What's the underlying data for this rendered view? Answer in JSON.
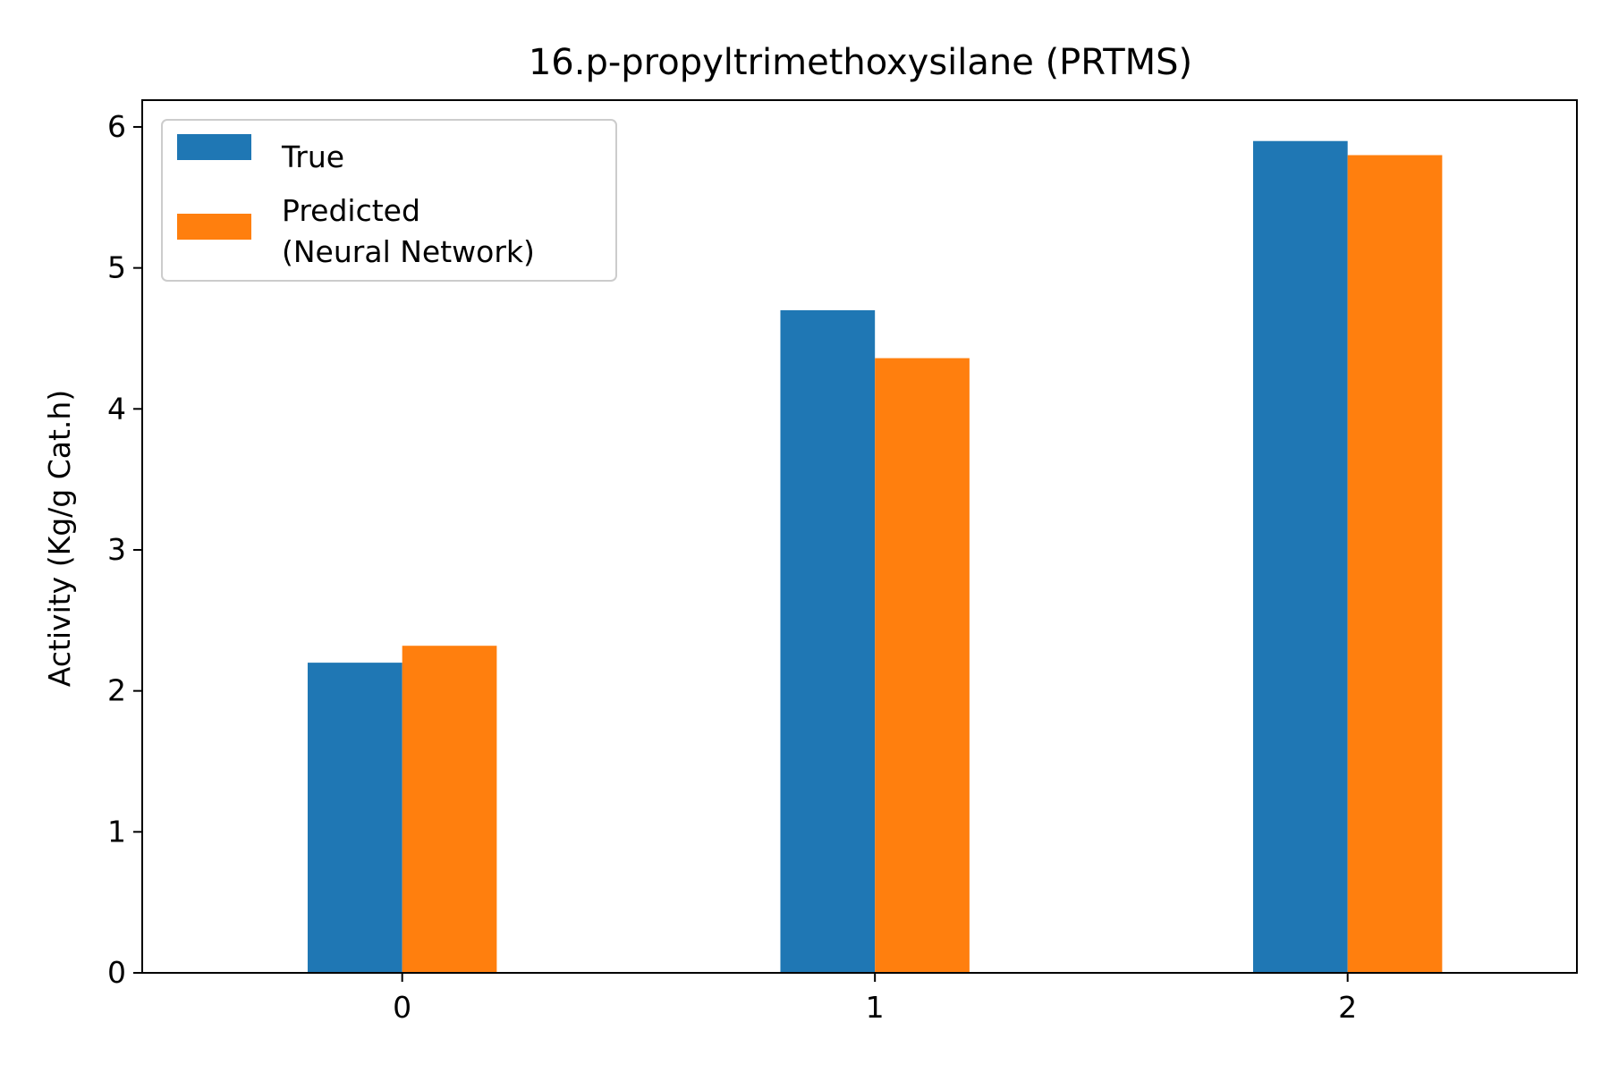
{
  "chart_data": {
    "type": "bar",
    "title": "16.p-propyltrimethoxysilane (PRTMS)",
    "xlabel": "",
    "ylabel": "Activity (Kg/g Cat.h)",
    "categories": [
      "0",
      "1",
      "2"
    ],
    "series": [
      {
        "name": "True",
        "color": "#1f77b4",
        "values": [
          2.2,
          4.7,
          5.9
        ]
      },
      {
        "name": "Predicted\n(Neural Network)",
        "color": "#ff7f0e",
        "values": [
          2.32,
          4.36,
          5.8
        ]
      }
    ],
    "ylim": [
      0,
      6.19
    ],
    "yticks": [
      "0",
      "1",
      "2",
      "3",
      "4",
      "5",
      "6"
    ],
    "grid": false,
    "legend_position": "top-left"
  }
}
